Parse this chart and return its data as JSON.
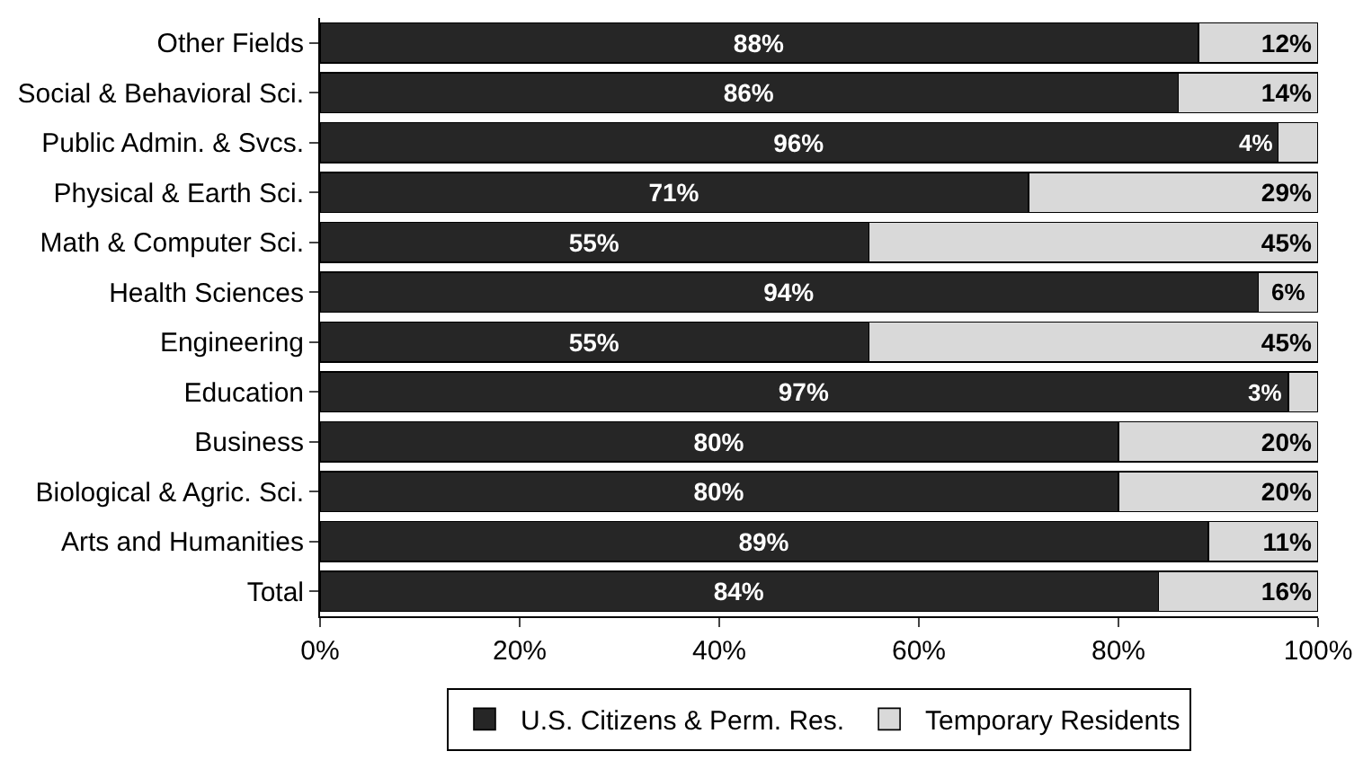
{
  "chart_data": {
    "type": "bar",
    "orientation": "horizontal",
    "stacked": true,
    "categories": [
      "Other Fields",
      "Social & Behavioral Sci.",
      "Public Admin. & Svcs.",
      "Physical & Earth Sci.",
      "Math & Computer Sci.",
      "Health Sciences",
      "Engineering",
      "Education",
      "Business",
      "Biological & Agric. Sci.",
      "Arts and Humanities",
      "Total"
    ],
    "series": [
      {
        "name": "U.S. Citizens & Perm. Res.",
        "color": "#262626",
        "values": [
          88,
          86,
          96,
          71,
          55,
          94,
          55,
          97,
          80,
          80,
          89,
          84
        ],
        "value_labels": [
          "88%",
          "86%",
          "96%",
          "71%",
          "55%",
          "94%",
          "55%",
          "97%",
          "80%",
          "80%",
          "89%",
          "84%"
        ]
      },
      {
        "name": "Temporary Residents",
        "color": "#d9d9d9",
        "values": [
          12,
          14,
          4,
          29,
          45,
          6,
          45,
          3,
          20,
          20,
          11,
          16
        ],
        "value_labels": [
          "12%",
          "14%",
          "4%",
          "29%",
          "45%",
          "6%",
          "45%",
          "3%",
          "20%",
          "20%",
          "11%",
          "16%"
        ]
      }
    ],
    "xlim": [
      0,
      100
    ],
    "xticks": [
      {
        "value": 0,
        "label": "0%"
      },
      {
        "value": 20,
        "label": "20%"
      },
      {
        "value": 40,
        "label": "40%"
      },
      {
        "value": 60,
        "label": "60%"
      },
      {
        "value": 80,
        "label": "80%"
      },
      {
        "value": 100,
        "label": "100%"
      }
    ],
    "grid": false,
    "legend": "bottom"
  }
}
